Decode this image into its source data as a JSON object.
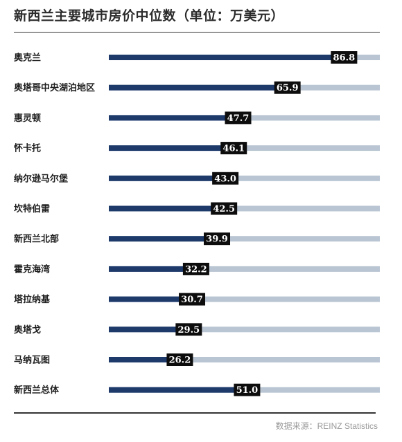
{
  "title": "新西兰主要城市房价中位数（单位：万美元）",
  "source": "数据来源：REINZ Statistics",
  "colors": {
    "bar_fill": "#1d3a6b",
    "track": "#b9c5d3",
    "label_bg": "#0d0d0d",
    "label_text": "#ffffff"
  },
  "chart_data": {
    "type": "bar",
    "orientation": "horizontal",
    "title": "新西兰主要城市房价中位数（单位：万美元）",
    "categories": [
      "奥克兰",
      "奥塔哥中央湖泊地区",
      "惠灵顿",
      "怀卡托",
      "纳尔逊马尔堡",
      "坎特伯雷",
      "新西兰北部",
      "霍克海湾",
      "塔拉纳基",
      "奥塔戈",
      "马纳瓦图",
      "新西兰总体"
    ],
    "values": [
      86.8,
      65.9,
      47.7,
      46.1,
      43.0,
      42.5,
      39.9,
      32.2,
      30.7,
      29.5,
      26.2,
      51.0
    ],
    "value_labels": [
      "86.8",
      "65.9",
      "47.7",
      "46.1",
      "43.0",
      "42.5",
      "39.9",
      "32.2",
      "30.7",
      "29.5",
      "26.2",
      "51.0"
    ],
    "xlim": [
      0,
      100
    ],
    "grid": false,
    "legend": "none"
  }
}
